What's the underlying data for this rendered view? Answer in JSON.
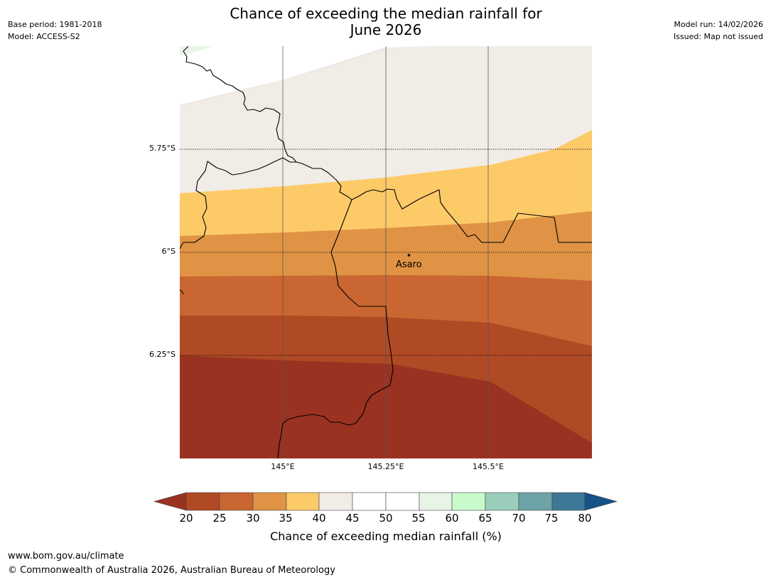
{
  "title_line1": "Chance of exceeding the median rainfall for",
  "title_line2": "June 2026",
  "base_period": "Base period: 1981-2018",
  "model": "Model: ACCESS-S2",
  "model_run": "Model run: 14/02/2026",
  "issued": "Issued: Map not issued",
  "lat_ticks": [
    "5.75°S",
    "6°S",
    "6.25°S"
  ],
  "lon_ticks": [
    "145°E",
    "145.25°E",
    "145.5°E"
  ],
  "place": {
    "name": "Asaro",
    "lat": -6.01,
    "lon": 145.33
  },
  "colorbar": {
    "label": "Chance of exceeding median rainfall (%)",
    "ticks": [
      "20",
      "25",
      "30",
      "35",
      "40",
      "45",
      "50",
      "55",
      "60",
      "65",
      "70",
      "75",
      "80"
    ],
    "colors": {
      "below_20": "#993220",
      "20_25": "#b04a25",
      "25_30": "#c96631",
      "30_35": "#e09345",
      "35_40": "#fdca68",
      "40_45": "#f1ece6",
      "45_50": "#ffffff",
      "50_55": "#ffffff",
      "55_60": "#e8f5e6",
      "60_65": "#c8facb",
      "65_70": "#9bceba",
      "70_75": "#6ea3a7",
      "75_80": "#3d7898",
      "above_80": "#165286"
    }
  },
  "footer_url": "www.bom.gov.au/climate",
  "footer_copyright": "© Commonwealth of Australia 2026, Australian Bureau of Meteorology"
}
